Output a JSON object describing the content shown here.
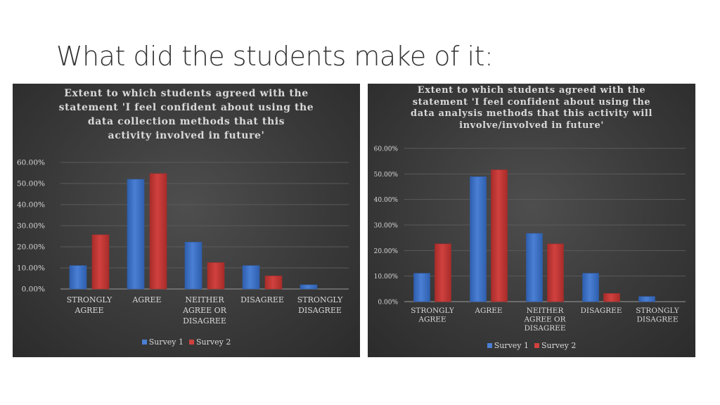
{
  "slide": {
    "title": "What did the students make of it:"
  },
  "colors": {
    "survey1": "#4a7fd4",
    "survey2": "#d0413e",
    "panel_background": "#3d3d3d",
    "text": "#d9d9d9",
    "gridline": "#5a5a5a"
  },
  "chart_data": [
    {
      "type": "bar",
      "title_lines": [
        "Extent to which students agreed with the",
        "statement 'I feel confident about using the",
        "data collection methods that this",
        "activity involved in future'"
      ],
      "categories": [
        [
          "STRONGLY",
          "AGREE"
        ],
        [
          "AGREE"
        ],
        [
          "NEITHER",
          "AGREE OR",
          "DISAGREE"
        ],
        [
          "DISAGREE"
        ],
        [
          "STRONGLY",
          "DISAGREE"
        ]
      ],
      "series": [
        {
          "name": "Survey 1",
          "values": [
            11.1,
            52.0,
            22.2,
            11.1,
            2.0
          ]
        },
        {
          "name": "Survey 2",
          "values": [
            25.7,
            54.7,
            12.5,
            6.2,
            0
          ]
        }
      ],
      "ylim": [
        0,
        60
      ],
      "y_ticks": [
        "0.00%",
        "10.00%",
        "20.00%",
        "30.00%",
        "40.00%",
        "50.00%",
        "60.00%"
      ],
      "grid": true,
      "legend_placement": "bottom"
    },
    {
      "type": "bar",
      "title_lines": [
        "Extent to which students agreed with the",
        "statement 'I feel confident about using the",
        "data analysis methods that this activity will",
        "involve/involved in future'"
      ],
      "categories": [
        [
          "STRONGLY",
          "AGREE"
        ],
        [
          "AGREE"
        ],
        [
          "NEITHER",
          "AGREE OR",
          "DISAGREE"
        ],
        [
          "DISAGREE"
        ],
        [
          "STRONGLY",
          "DISAGREE"
        ]
      ],
      "series": [
        {
          "name": "Survey 1",
          "values": [
            11.1,
            48.9,
            26.7,
            11.1,
            2.0
          ]
        },
        {
          "name": "Survey 2",
          "values": [
            22.6,
            51.6,
            22.6,
            3.2,
            0
          ]
        }
      ],
      "ylim": [
        0,
        60
      ],
      "y_ticks": [
        "0.00%",
        "10.00%",
        "20.00%",
        "30.00%",
        "40.00%",
        "50.00%",
        "60.00%"
      ],
      "grid": true,
      "legend_placement": "bottom"
    }
  ]
}
